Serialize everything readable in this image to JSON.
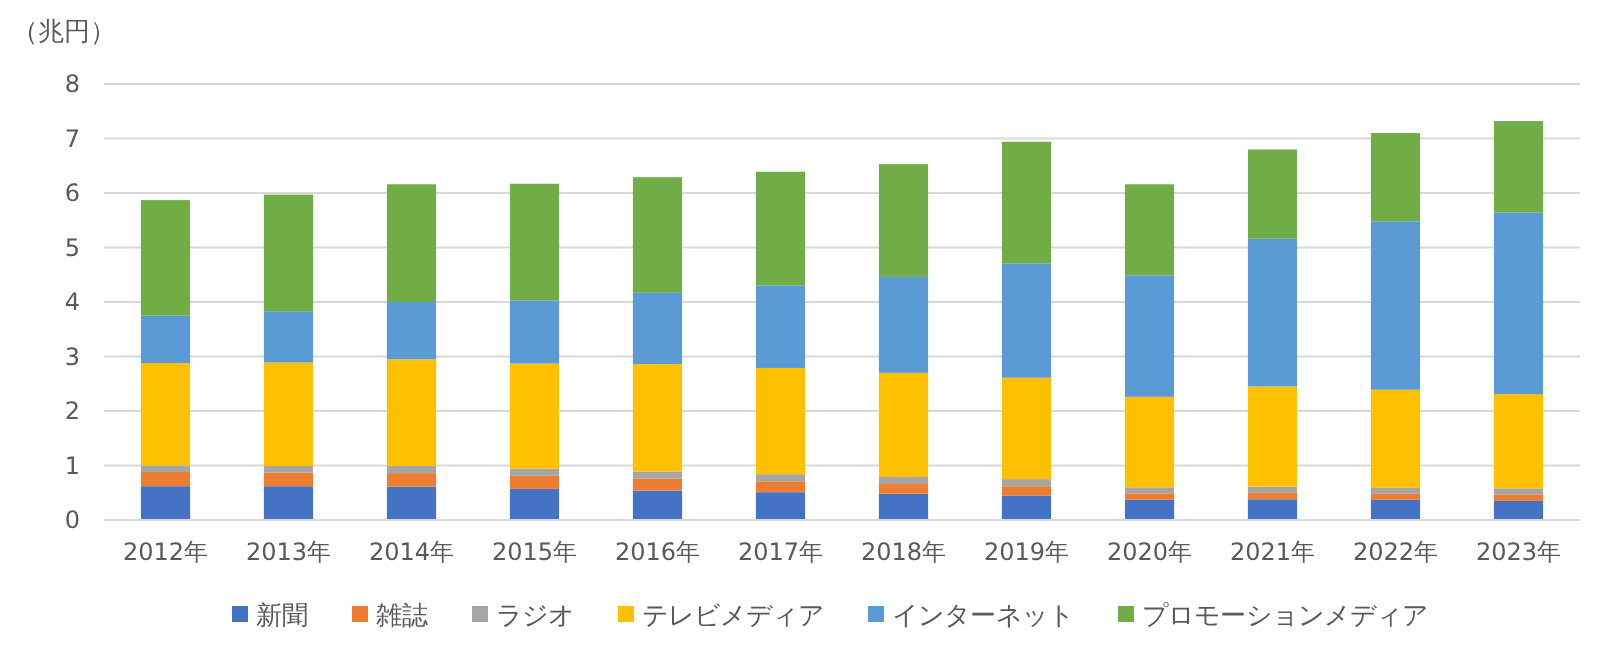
{
  "chart_data": {
    "type": "bar",
    "stacked": true,
    "ylabel": "（兆円）",
    "categories": [
      "2012年",
      "2013年",
      "2014年",
      "2015年",
      "2016年",
      "2017年",
      "2018年",
      "2019年",
      "2020年",
      "2021年",
      "2022年",
      "2023年"
    ],
    "series": [
      {
        "name": "新聞",
        "color": "#4472c4",
        "values": [
          0.62,
          0.62,
          0.61,
          0.57,
          0.54,
          0.51,
          0.48,
          0.45,
          0.37,
          0.38,
          0.37,
          0.35
        ]
      },
      {
        "name": "雑誌",
        "color": "#ed7d31",
        "values": [
          0.26,
          0.25,
          0.25,
          0.24,
          0.22,
          0.2,
          0.18,
          0.17,
          0.12,
          0.12,
          0.11,
          0.12
        ]
      },
      {
        "name": "ラジオ",
        "color": "#a5a5a5",
        "values": [
          0.12,
          0.12,
          0.13,
          0.13,
          0.13,
          0.13,
          0.13,
          0.13,
          0.11,
          0.11,
          0.11,
          0.11
        ]
      },
      {
        "name": "テレビメディア",
        "color": "#ffc000",
        "values": [
          1.88,
          1.9,
          1.96,
          1.93,
          1.97,
          1.95,
          1.91,
          1.86,
          1.66,
          1.84,
          1.8,
          1.73
        ]
      },
      {
        "name": "インターネット",
        "color": "#5b9bd5",
        "values": [
          0.87,
          0.94,
          1.05,
          1.16,
          1.31,
          1.51,
          1.76,
          2.1,
          2.23,
          2.71,
          3.09,
          3.33
        ]
      },
      {
        "name": "プロモーションメディア",
        "color": "#70ad47",
        "values": [
          2.12,
          2.14,
          2.16,
          2.14,
          2.12,
          2.09,
          2.07,
          2.23,
          1.67,
          1.64,
          1.62,
          1.68
        ]
      }
    ],
    "ylim": [
      0,
      8
    ],
    "yticks": [
      0,
      1,
      2,
      3,
      4,
      5,
      6,
      7,
      8
    ],
    "grid": "y",
    "legend": "bottom"
  }
}
